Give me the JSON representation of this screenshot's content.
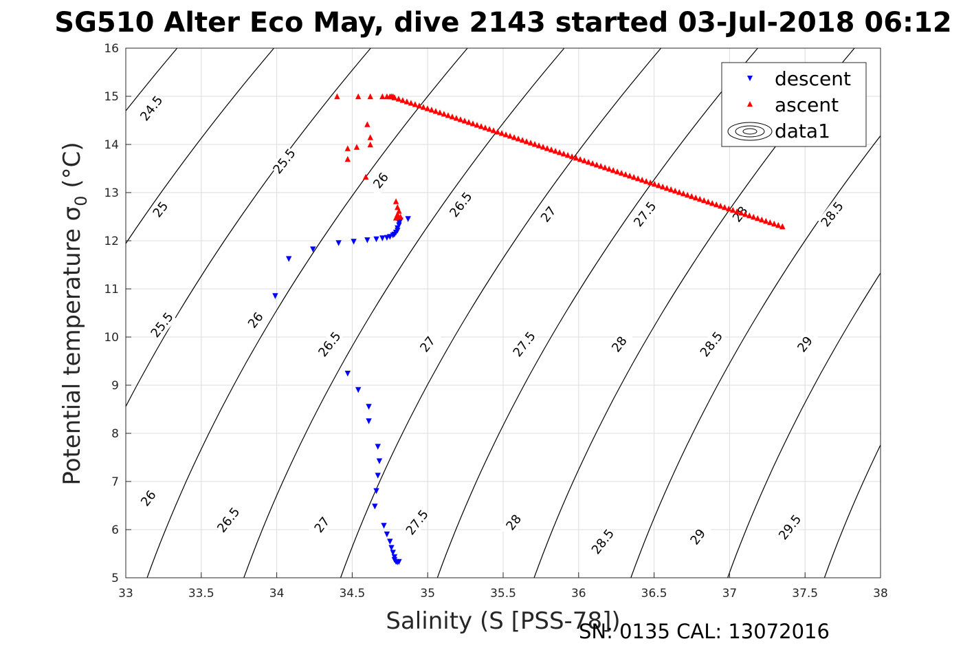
{
  "chart_data": {
    "type": "scatter",
    "title": "SG510 Alter Eco May, dive 2143 started 03-Jul-2018 06:12",
    "xlabel": "Salinity (S [PSS-78])",
    "ylabel_main": "Potential temperature σ",
    "ylabel_sub": "0",
    "ylabel_unit": " (°C)",
    "footer": "SN: 0135  CAL: 13072016",
    "xlim": [
      33,
      38
    ],
    "ylim": [
      5,
      16
    ],
    "xticks": [
      33,
      33.5,
      34,
      34.5,
      35,
      35.5,
      36,
      36.5,
      37,
      37.5,
      38
    ],
    "yticks": [
      5,
      6,
      7,
      8,
      9,
      10,
      11,
      12,
      13,
      14,
      15,
      16
    ],
    "grid": true,
    "legend_position": "top-right",
    "series": [
      {
        "name": "descent",
        "color": "#0000ff",
        "marker": "triangle-down",
        "points": [
          [
            34.87,
            12.45
          ],
          [
            34.82,
            12.42
          ],
          [
            34.81,
            12.38
          ],
          [
            34.81,
            12.32
          ],
          [
            34.8,
            12.26
          ],
          [
            34.8,
            12.21
          ],
          [
            34.79,
            12.17
          ],
          [
            34.78,
            12.13
          ],
          [
            34.77,
            12.11
          ],
          [
            34.75,
            12.08
          ],
          [
            34.73,
            12.06
          ],
          [
            34.7,
            12.05
          ],
          [
            34.66,
            12.03
          ],
          [
            34.6,
            12.01
          ],
          [
            34.51,
            11.98
          ],
          [
            34.41,
            11.95
          ],
          [
            34.24,
            11.82
          ],
          [
            34.08,
            11.62
          ],
          [
            33.99,
            10.85
          ],
          [
            34.47,
            9.24
          ],
          [
            34.54,
            8.9
          ],
          [
            34.61,
            8.55
          ],
          [
            34.61,
            8.25
          ],
          [
            34.67,
            7.72
          ],
          [
            34.68,
            7.42
          ],
          [
            34.67,
            7.12
          ],
          [
            34.66,
            6.8
          ],
          [
            34.65,
            6.48
          ],
          [
            34.71,
            6.08
          ],
          [
            34.73,
            5.9
          ],
          [
            34.75,
            5.75
          ],
          [
            34.76,
            5.62
          ],
          [
            34.77,
            5.52
          ],
          [
            34.78,
            5.43
          ],
          [
            34.78,
            5.37
          ],
          [
            34.79,
            5.33
          ],
          [
            34.8,
            5.32
          ],
          [
            34.81,
            5.33
          ]
        ]
      },
      {
        "name": "ascent",
        "color": "#ff0000",
        "marker": "triangle-up",
        "points": [
          [
            34.4,
            15.0
          ],
          [
            34.54,
            15.0
          ],
          [
            34.62,
            15.0
          ],
          [
            34.7,
            15.0
          ],
          [
            34.73,
            15.0
          ],
          [
            34.75,
            15.0
          ],
          [
            34.76,
            15.0
          ],
          [
            34.77,
            15.0
          ],
          [
            34.78,
            14.98
          ],
          [
            34.6,
            14.42
          ],
          [
            34.62,
            14.15
          ],
          [
            34.62,
            14.0
          ],
          [
            34.53,
            13.95
          ],
          [
            34.47,
            13.92
          ],
          [
            34.47,
            13.7
          ],
          [
            34.59,
            13.33
          ],
          [
            34.79,
            12.82
          ],
          [
            34.8,
            12.7
          ],
          [
            34.81,
            12.62
          ],
          [
            34.8,
            12.55
          ],
          [
            34.8,
            12.52
          ],
          [
            34.82,
            12.5
          ],
          [
            34.79,
            12.48
          ],
          [
            37.35,
            12.3
          ]
        ],
        "ascent_line": {
          "from": [
            34.78,
            14.98
          ],
          "to": [
            37.35,
            12.3
          ],
          "count": 95
        }
      }
    ],
    "contour_series": "data1",
    "density_contours": [
      24.5,
      25,
      25.5,
      26,
      26.5,
      27,
      27.5,
      28,
      28.5,
      29,
      29.5
    ],
    "contour_labels": [
      {
        "text": "24.5",
        "s": 33.17,
        "t": 14.75
      },
      {
        "text": "25.5",
        "s": 34.05,
        "t": 13.65
      },
      {
        "text": "26",
        "s": 34.69,
        "t": 13.25
      },
      {
        "text": "26.5",
        "s": 35.22,
        "t": 12.75
      },
      {
        "text": "27",
        "s": 35.8,
        "t": 12.55
      },
      {
        "text": "27.5",
        "s": 36.44,
        "t": 12.55
      },
      {
        "text": "28",
        "s": 37.07,
        "t": 12.55
      },
      {
        "text": "28.5",
        "s": 37.68,
        "t": 12.55
      },
      {
        "text": "25",
        "s": 33.23,
        "t": 12.65
      },
      {
        "text": "25.5",
        "s": 33.24,
        "t": 10.25
      },
      {
        "text": "26",
        "s": 33.86,
        "t": 10.35
      },
      {
        "text": "26.5",
        "s": 34.35,
        "t": 9.85
      },
      {
        "text": "27",
        "s": 35.0,
        "t": 9.85
      },
      {
        "text": "27.5",
        "s": 35.64,
        "t": 9.85
      },
      {
        "text": "28",
        "s": 36.27,
        "t": 9.85
      },
      {
        "text": "28.5",
        "s": 36.88,
        "t": 9.85
      },
      {
        "text": "29",
        "s": 37.5,
        "t": 9.85
      },
      {
        "text": "26",
        "s": 33.15,
        "t": 6.65
      },
      {
        "text": "26.5",
        "s": 33.68,
        "t": 6.2
      },
      {
        "text": "27",
        "s": 34.3,
        "t": 6.1
      },
      {
        "text": "27.5",
        "s": 34.93,
        "t": 6.15
      },
      {
        "text": "28",
        "s": 35.57,
        "t": 6.15
      },
      {
        "text": "28.5",
        "s": 36.16,
        "t": 5.75
      },
      {
        "text": "29",
        "s": 36.79,
        "t": 5.85
      },
      {
        "text": "29.5",
        "s": 37.4,
        "t": 6.05
      }
    ]
  }
}
